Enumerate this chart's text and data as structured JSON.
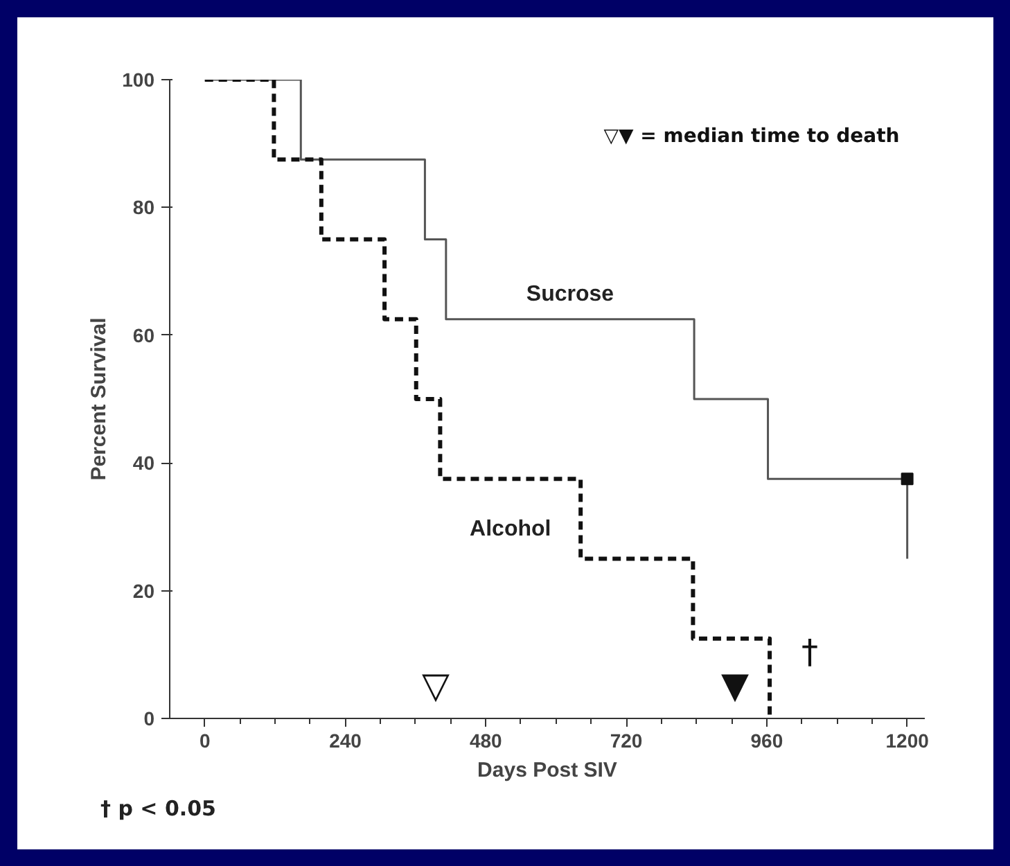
{
  "chart_data": {
    "type": "step",
    "xlabel": "Days Post SIV",
    "ylabel": "Percent Survival",
    "xlim": [
      -60,
      1230
    ],
    "ylim": [
      0,
      100
    ],
    "xticks": [
      0,
      240,
      480,
      720,
      960,
      1200
    ],
    "yticks": [
      0,
      20,
      40,
      60,
      80,
      100
    ],
    "grid": false,
    "series": [
      {
        "name": "Sucrose",
        "color": "#555555",
        "line_style": "solid",
        "x": [
          0,
          164,
          376,
          412,
          836,
          962,
          1200,
          1200
        ],
        "values": [
          100,
          87.5,
          75,
          62.5,
          50,
          37.5,
          37.5,
          25
        ]
      },
      {
        "name": "Alcohol",
        "color": "#111111",
        "line_style": "dashed",
        "x": [
          0,
          118,
          199,
          307,
          361,
          402,
          642,
          834,
          965
        ],
        "values": [
          100,
          87.5,
          75,
          62.5,
          50,
          37.5,
          25,
          12.5,
          0
        ]
      },
      {
        "type": "scatter",
        "marker": "square",
        "color": "#111111",
        "x": [
          1200
        ],
        "values": [
          37.5
        ]
      }
    ],
    "annotations": [
      "▽",
      "▼",
      "†",
      "▽▼ = median time to death",
      "† p < 0.05"
    ]
  }
}
